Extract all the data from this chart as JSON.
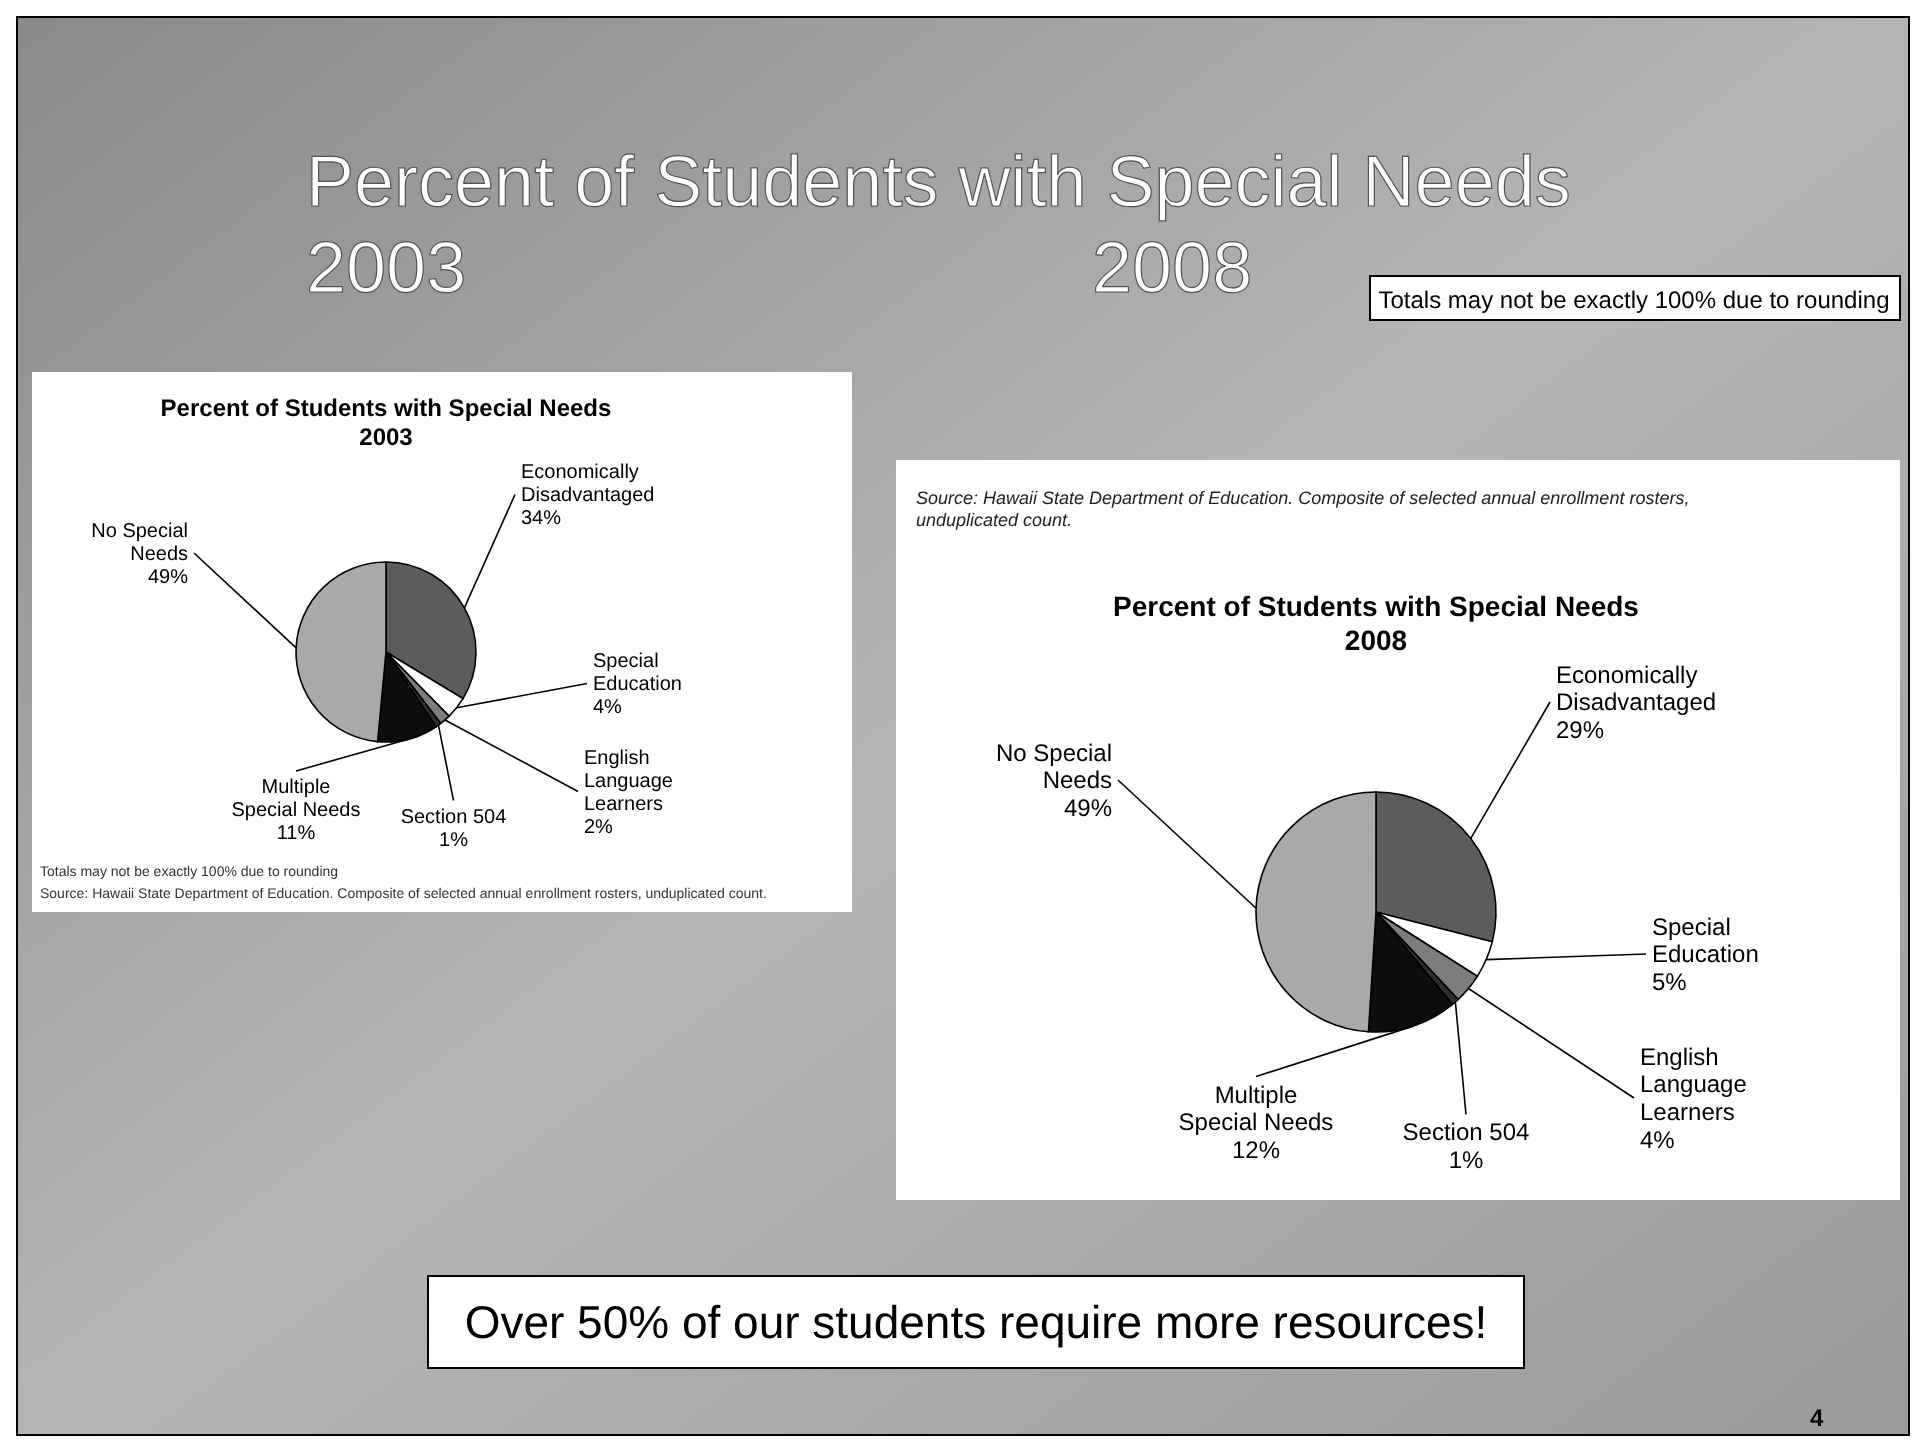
{
  "chart_data": [
    {
      "type": "other",
      "title": "Percent of Students with Special Needs",
      "annotations": [
        "2003",
        "2008",
        "Totals may not be exactly 100% due to rounding",
        "Over 50% of our students require more resources!",
        "4"
      ]
    },
    {
      "type": "pie",
      "title": "Percent of Students with Special Needs",
      "subtitle": "2003",
      "categories": [
        "Economically Disadvantaged",
        "Special Education",
        "English Language Learners",
        "Section 504",
        "Multiple Special Needs",
        "No Special Needs"
      ],
      "values": [
        34,
        4,
        2,
        1,
        11,
        49
      ],
      "value_labels": [
        "34%",
        "4%",
        "2%",
        "1%",
        "11%",
        "49%"
      ],
      "colors": [
        "#5c5c5c",
        "#ffffff",
        "#7d7d7d",
        "#2e2e2e",
        "#0d0d0d",
        "#a9a9a9"
      ],
      "legend": false,
      "annotations": [
        "Totals may not be exactly 100% due to rounding",
        "Source: Hawaii State Department of Education. Composite of selected annual enrollment rosters, unduplicated count."
      ]
    },
    {
      "type": "pie",
      "title": "Percent of Students with Special Needs",
      "subtitle": "2008",
      "categories": [
        "Economically Disadvantaged",
        "Special Education",
        "English Language Learners",
        "Section 504",
        "Multiple Special Needs",
        "No Special Needs"
      ],
      "values": [
        29,
        5,
        4,
        1,
        12,
        49
      ],
      "value_labels": [
        "29%",
        "5%",
        "4%",
        "1%",
        "12%",
        "49%"
      ],
      "colors": [
        "#5c5c5c",
        "#ffffff",
        "#7d7d7d",
        "#2e2e2e",
        "#0d0d0d",
        "#a9a9a9"
      ],
      "legend": false,
      "annotations": [
        "Source: Hawaii State Department of Education. Composite of selected annual enrollment rosters, unduplicated count."
      ]
    }
  ]
}
